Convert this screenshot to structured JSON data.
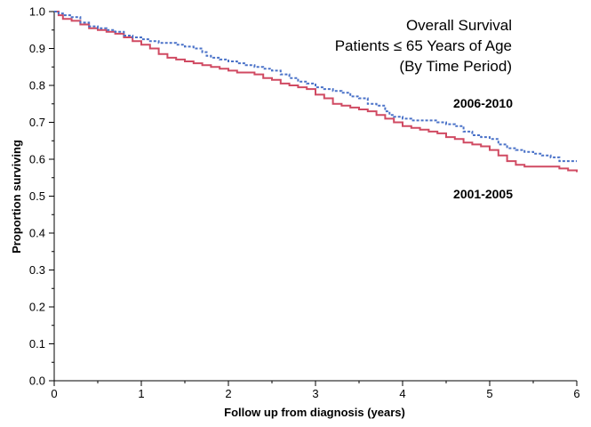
{
  "chart_data": {
    "type": "line",
    "title_lines": [
      "Overall Survival",
      "Patients ≤ 65 Years of Age",
      "(By Time Period)"
    ],
    "xlabel": "Follow up from diagnosis (years)",
    "ylabel": "Proportion surviving",
    "xlim": [
      0,
      6
    ],
    "ylim": [
      0,
      1.0
    ],
    "xticks": [
      "0",
      "1",
      "2",
      "3",
      "4",
      "5",
      "6"
    ],
    "yticks": [
      "0.0",
      "0.1",
      "0.2",
      "0.3",
      "0.4",
      "0.5",
      "0.6",
      "0.7",
      "0.8",
      "0.9",
      "1.0"
    ],
    "grid": false,
    "series": [
      {
        "name": "2006-2010",
        "color": "#4a72c8",
        "style": "dotted-step",
        "x": [
          0,
          0.05,
          0.1,
          0.2,
          0.3,
          0.4,
          0.5,
          0.6,
          0.7,
          0.8,
          0.9,
          1.0,
          1.1,
          1.2,
          1.3,
          1.4,
          1.5,
          1.6,
          1.7,
          1.75,
          1.8,
          1.9,
          2.0,
          2.1,
          2.2,
          2.3,
          2.4,
          2.5,
          2.6,
          2.7,
          2.8,
          2.9,
          3.0,
          3.1,
          3.2,
          3.3,
          3.4,
          3.5,
          3.6,
          3.7,
          3.8,
          3.85,
          3.9,
          4.0,
          4.1,
          4.2,
          4.3,
          4.4,
          4.5,
          4.6,
          4.7,
          4.8,
          4.9,
          5.0,
          5.1,
          5.2,
          5.3,
          5.4,
          5.5,
          5.6,
          5.7,
          5.8,
          5.9,
          6.0
        ],
        "y": [
          1.0,
          0.995,
          0.99,
          0.985,
          0.97,
          0.96,
          0.955,
          0.95,
          0.945,
          0.935,
          0.93,
          0.925,
          0.92,
          0.915,
          0.915,
          0.91,
          0.905,
          0.9,
          0.89,
          0.88,
          0.875,
          0.87,
          0.865,
          0.86,
          0.855,
          0.85,
          0.845,
          0.84,
          0.83,
          0.82,
          0.81,
          0.805,
          0.795,
          0.79,
          0.785,
          0.78,
          0.77,
          0.765,
          0.75,
          0.745,
          0.73,
          0.72,
          0.715,
          0.71,
          0.705,
          0.705,
          0.705,
          0.7,
          0.695,
          0.69,
          0.675,
          0.665,
          0.66,
          0.655,
          0.64,
          0.63,
          0.625,
          0.62,
          0.615,
          0.61,
          0.605,
          0.595,
          0.595,
          0.595
        ]
      },
      {
        "name": "2001-2005",
        "color": "#d04a62",
        "style": "solid-step",
        "x": [
          0,
          0.05,
          0.1,
          0.2,
          0.3,
          0.4,
          0.5,
          0.6,
          0.7,
          0.8,
          0.9,
          1.0,
          1.1,
          1.2,
          1.3,
          1.4,
          1.5,
          1.6,
          1.7,
          1.8,
          1.9,
          2.0,
          2.1,
          2.2,
          2.3,
          2.4,
          2.5,
          2.6,
          2.7,
          2.8,
          2.9,
          3.0,
          3.1,
          3.2,
          3.3,
          3.4,
          3.5,
          3.6,
          3.7,
          3.8,
          3.9,
          4.0,
          4.1,
          4.2,
          4.3,
          4.4,
          4.5,
          4.6,
          4.7,
          4.8,
          4.9,
          5.0,
          5.1,
          5.2,
          5.3,
          5.4,
          5.5,
          5.6,
          5.7,
          5.8,
          5.9,
          6.0
        ],
        "y": [
          1.0,
          0.99,
          0.98,
          0.975,
          0.965,
          0.955,
          0.95,
          0.945,
          0.94,
          0.93,
          0.92,
          0.91,
          0.9,
          0.885,
          0.875,
          0.87,
          0.865,
          0.86,
          0.855,
          0.85,
          0.845,
          0.84,
          0.835,
          0.835,
          0.83,
          0.82,
          0.815,
          0.805,
          0.8,
          0.795,
          0.79,
          0.775,
          0.765,
          0.75,
          0.745,
          0.74,
          0.735,
          0.73,
          0.72,
          0.71,
          0.7,
          0.69,
          0.685,
          0.68,
          0.675,
          0.67,
          0.66,
          0.655,
          0.645,
          0.64,
          0.635,
          0.625,
          0.61,
          0.595,
          0.585,
          0.58,
          0.58,
          0.58,
          0.58,
          0.575,
          0.57,
          0.565
        ]
      }
    ],
    "series_labels": [
      "2006-2010",
      "2001-2005"
    ]
  }
}
